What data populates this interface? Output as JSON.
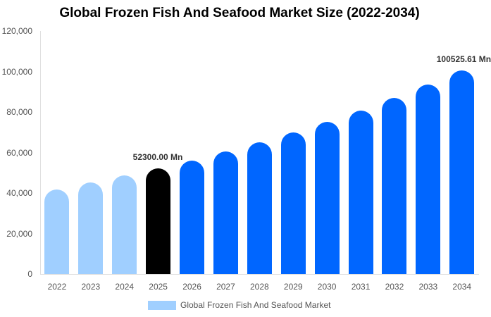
{
  "chart_data": {
    "type": "bar",
    "title": "Global Frozen Fish And Seafood Market Size (2022-2034)",
    "xlabel": "",
    "ylabel": "",
    "ylim": [
      0,
      120000
    ],
    "yticks": [
      "0",
      "20,000",
      "40,000",
      "60,000",
      "80,000",
      "100,000",
      "120,000"
    ],
    "grid": false,
    "legend_position": "bottom",
    "categories": [
      "2022",
      "2023",
      "2024",
      "2025",
      "2026",
      "2027",
      "2028",
      "2029",
      "2030",
      "2031",
      "2032",
      "2033",
      "2034"
    ],
    "series": [
      {
        "name": "Global Frozen Fish And Seafood Market",
        "values": [
          41700,
          45200,
          48700,
          52300,
          56000,
          60500,
          65000,
          70000,
          75100,
          80700,
          87000,
          93600,
          100525.61
        ]
      }
    ],
    "bar_colors": [
      "#a0cfff",
      "#a0cfff",
      "#a0cfff",
      "#000000",
      "#0066ff",
      "#0066ff",
      "#0066ff",
      "#0066ff",
      "#0066ff",
      "#0066ff",
      "#0066ff",
      "#0066ff",
      "#0066ff"
    ],
    "annotations": [
      {
        "category": "2025",
        "text": "52300.00 Mn"
      },
      {
        "category": "2034",
        "text": "100525.61 Mn"
      }
    ]
  },
  "legend": {
    "label": "Global Frozen Fish And Seafood Market",
    "color": "#a0cfff"
  }
}
